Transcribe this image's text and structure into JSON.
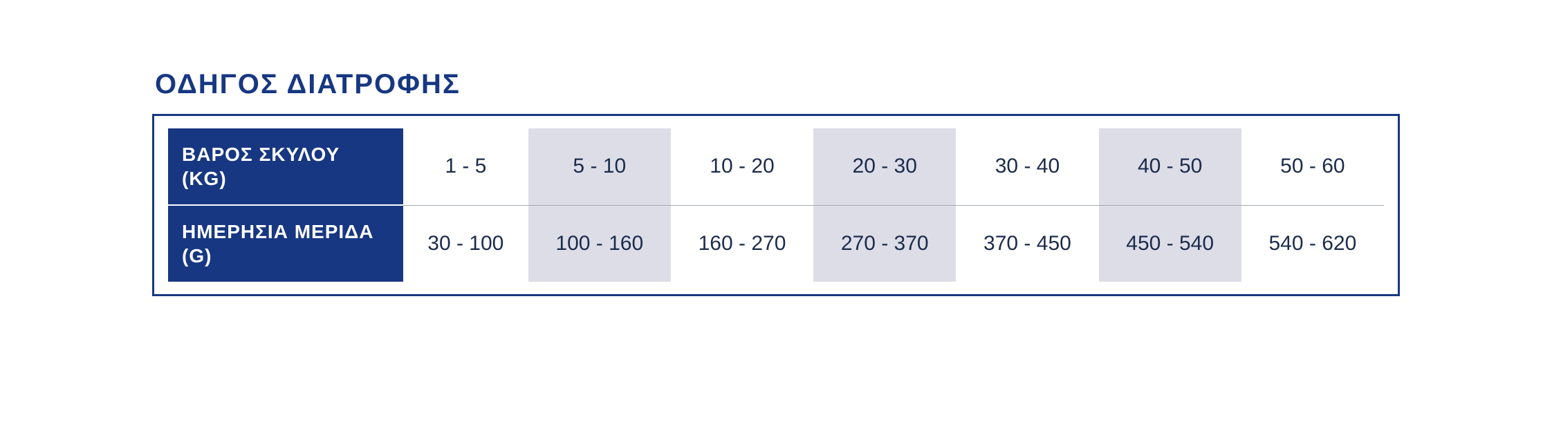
{
  "colors": {
    "brand": "#173782",
    "title": "#173782",
    "text": "#1b2b4a",
    "stripe": "#dcdde7",
    "border": "#173782",
    "divider": "#a3a8b3",
    "background": "#ffffff"
  },
  "typography": {
    "title_fontsize": 40,
    "header_fontsize": 28,
    "cell_fontsize": 30,
    "title_letter_spacing": 2,
    "font_family": "Arial"
  },
  "table": {
    "type": "table",
    "title": "ΟΔΗΓΟΣ ΔΙΑΤΡΟΦΗΣ",
    "stripe_columns": [
      1,
      3,
      5
    ],
    "rows": [
      {
        "header": "ΒΑΡΟΣ ΣΚΥΛΟΥ (KG)",
        "cells": [
          "1 - 5",
          "5 - 10",
          "10 - 20",
          "20 - 30",
          "30 - 40",
          "40 - 50",
          "50 - 60"
        ]
      },
      {
        "header": "ΗΜΕΡΗΣΙΑ ΜΕΡΙΔΑ (G)",
        "cells": [
          "30 - 100",
          "100 - 160",
          "160 - 270",
          "270 - 370",
          "370 - 450",
          "450 - 540",
          "540 - 620"
        ]
      }
    ]
  }
}
